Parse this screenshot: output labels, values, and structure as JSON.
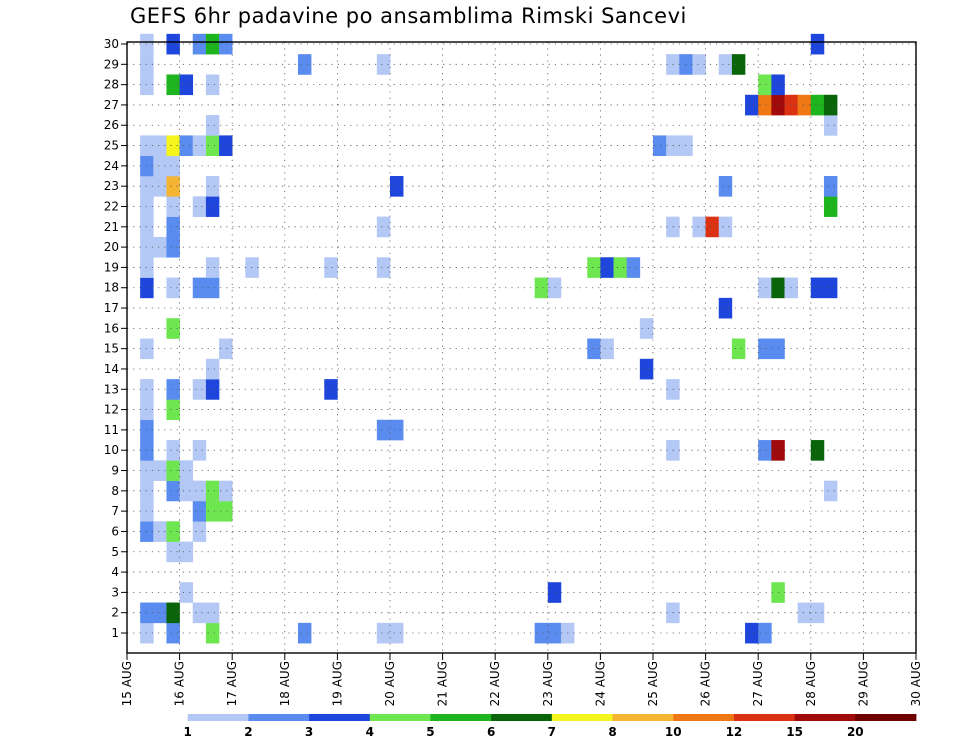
{
  "title": "GEFS 6hr padavine po ansamblima Rimski Sancevi",
  "chart_data": {
    "type": "heatmap",
    "title": "GEFS 6hr padavine po ansamblima Rimski Sancevi",
    "x_tick_labels": [
      "15 AUG",
      "16 AUG",
      "17 AUG",
      "18 AUG",
      "19 AUG",
      "20 AUG",
      "21 AUG",
      "22 AUG",
      "23 AUG",
      "24 AUG",
      "25 AUG",
      "26 AUG",
      "27 AUG",
      "28 AUG",
      "29 AUG",
      "30 AUG"
    ],
    "y_tick_labels": [
      "1",
      "2",
      "3",
      "4",
      "5",
      "6",
      "7",
      "8",
      "9",
      "10",
      "11",
      "12",
      "13",
      "14",
      "15",
      "16",
      "17",
      "18",
      "19",
      "20",
      "21",
      "22",
      "23",
      "24",
      "25",
      "26",
      "27",
      "28",
      "29",
      "30"
    ],
    "xlim_days": [
      0,
      15
    ],
    "ylim_members": [
      1,
      30
    ],
    "grid": "dotted",
    "legend": {
      "position": "bottom",
      "labels": [
        "1",
        "2",
        "3",
        "4",
        "5",
        "6",
        "7",
        "8",
        "10",
        "12",
        "15",
        "20"
      ],
      "colors": [
        "#ffffff",
        "#b4c8f5",
        "#5a8cf0",
        "#1e46dc",
        "#6ee650",
        "#1eb41e",
        "#0a640a",
        "#f5f51e",
        "#f5b432",
        "#f07814",
        "#dc3214",
        "#a00a0a",
        "#6e0000"
      ]
    },
    "cells": [
      {
        "t": 1,
        "m": 1,
        "c": 1
      },
      {
        "t": 1,
        "m": 2,
        "c": 2
      },
      {
        "t": 1,
        "m": 6,
        "c": 2
      },
      {
        "t": 1,
        "m": 7,
        "c": 1
      },
      {
        "t": 1,
        "m": 8,
        "c": 1
      },
      {
        "t": 1,
        "m": 9,
        "c": 1
      },
      {
        "t": 1,
        "m": 10,
        "c": 2
      },
      {
        "t": 1,
        "m": 11,
        "c": 2
      },
      {
        "t": 1,
        "m": 12,
        "c": 1
      },
      {
        "t": 1,
        "m": 13,
        "c": 1
      },
      {
        "t": 1,
        "m": 15,
        "c": 1
      },
      {
        "t": 1,
        "m": 18,
        "c": 3
      },
      {
        "t": 1,
        "m": 19,
        "c": 1
      },
      {
        "t": 1,
        "m": 20,
        "c": 1
      },
      {
        "t": 1,
        "m": 21,
        "c": 1
      },
      {
        "t": 1,
        "m": 22,
        "c": 1
      },
      {
        "t": 1,
        "m": 23,
        "c": 1
      },
      {
        "t": 1,
        "m": 24,
        "c": 2
      },
      {
        "t": 1,
        "m": 25,
        "c": 1
      },
      {
        "t": 1,
        "m": 28,
        "c": 1
      },
      {
        "t": 1,
        "m": 29,
        "c": 1
      },
      {
        "t": 1,
        "m": 30,
        "c": 1
      },
      {
        "t": 2,
        "m": 2,
        "c": 2
      },
      {
        "t": 2,
        "m": 6,
        "c": 1
      },
      {
        "t": 2,
        "m": 9,
        "c": 1
      },
      {
        "t": 2,
        "m": 20,
        "c": 1
      },
      {
        "t": 2,
        "m": 23,
        "c": 1
      },
      {
        "t": 2,
        "m": 24,
        "c": 1
      },
      {
        "t": 2,
        "m": 25,
        "c": 1
      },
      {
        "t": 3,
        "m": 1,
        "c": 2
      },
      {
        "t": 3,
        "m": 2,
        "c": 6
      },
      {
        "t": 3,
        "m": 5,
        "c": 1
      },
      {
        "t": 3,
        "m": 6,
        "c": 4
      },
      {
        "t": 3,
        "m": 8,
        "c": 2
      },
      {
        "t": 3,
        "m": 9,
        "c": 4
      },
      {
        "t": 3,
        "m": 10,
        "c": 1
      },
      {
        "t": 3,
        "m": 12,
        "c": 4
      },
      {
        "t": 3,
        "m": 13,
        "c": 2
      },
      {
        "t": 3,
        "m": 16,
        "c": 4
      },
      {
        "t": 3,
        "m": 18,
        "c": 1
      },
      {
        "t": 3,
        "m": 20,
        "c": 2
      },
      {
        "t": 3,
        "m": 21,
        "c": 2
      },
      {
        "t": 3,
        "m": 22,
        "c": 1
      },
      {
        "t": 3,
        "m": 23,
        "c": 8
      },
      {
        "t": 3,
        "m": 24,
        "c": 1
      },
      {
        "t": 3,
        "m": 25,
        "c": 7
      },
      {
        "t": 3,
        "m": 28,
        "c": 5
      },
      {
        "t": 3,
        "m": 30,
        "c": 3
      },
      {
        "t": 4,
        "m": 3,
        "c": 1
      },
      {
        "t": 4,
        "m": 5,
        "c": 1
      },
      {
        "t": 4,
        "m": 8,
        "c": 1
      },
      {
        "t": 4,
        "m": 9,
        "c": 1
      },
      {
        "t": 4,
        "m": 25,
        "c": 2
      },
      {
        "t": 4,
        "m": 28,
        "c": 3
      },
      {
        "t": 5,
        "m": 2,
        "c": 1
      },
      {
        "t": 5,
        "m": 6,
        "c": 1
      },
      {
        "t": 5,
        "m": 7,
        "c": 2
      },
      {
        "t": 5,
        "m": 8,
        "c": 1
      },
      {
        "t": 5,
        "m": 10,
        "c": 1
      },
      {
        "t": 5,
        "m": 13,
        "c": 1
      },
      {
        "t": 5,
        "m": 18,
        "c": 2
      },
      {
        "t": 5,
        "m": 22,
        "c": 1
      },
      {
        "t": 5,
        "m": 25,
        "c": 1
      },
      {
        "t": 5,
        "m": 30,
        "c": 2
      },
      {
        "t": 6,
        "m": 1,
        "c": 4
      },
      {
        "t": 6,
        "m": 2,
        "c": 1
      },
      {
        "t": 6,
        "m": 7,
        "c": 4
      },
      {
        "t": 6,
        "m": 8,
        "c": 4
      },
      {
        "t": 6,
        "m": 13,
        "c": 3
      },
      {
        "t": 6,
        "m": 14,
        "c": 1
      },
      {
        "t": 6,
        "m": 18,
        "c": 2
      },
      {
        "t": 6,
        "m": 19,
        "c": 1
      },
      {
        "t": 6,
        "m": 22,
        "c": 3
      },
      {
        "t": 6,
        "m": 23,
        "c": 1
      },
      {
        "t": 6,
        "m": 25,
        "c": 4
      },
      {
        "t": 6,
        "m": 26,
        "c": 1
      },
      {
        "t": 6,
        "m": 28,
        "c": 1
      },
      {
        "t": 6,
        "m": 30,
        "c": 5
      },
      {
        "t": 7,
        "m": 7,
        "c": 4
      },
      {
        "t": 7,
        "m": 8,
        "c": 1
      },
      {
        "t": 7,
        "m": 15,
        "c": 1
      },
      {
        "t": 7,
        "m": 25,
        "c": 3
      },
      {
        "t": 7,
        "m": 30,
        "c": 2
      },
      {
        "t": 9,
        "m": 19,
        "c": 1
      },
      {
        "t": 13,
        "m": 1,
        "c": 2
      },
      {
        "t": 13,
        "m": 29,
        "c": 2
      },
      {
        "t": 15,
        "m": 13,
        "c": 3
      },
      {
        "t": 15,
        "m": 19,
        "c": 1
      },
      {
        "t": 19,
        "m": 1,
        "c": 1
      },
      {
        "t": 19,
        "m": 11,
        "c": 2
      },
      {
        "t": 19,
        "m": 19,
        "c": 1
      },
      {
        "t": 19,
        "m": 21,
        "c": 1
      },
      {
        "t": 19,
        "m": 29,
        "c": 1
      },
      {
        "t": 20,
        "m": 1,
        "c": 1
      },
      {
        "t": 20,
        "m": 11,
        "c": 2
      },
      {
        "t": 20,
        "m": 23,
        "c": 3
      },
      {
        "t": 31,
        "m": 1,
        "c": 2
      },
      {
        "t": 31,
        "m": 18,
        "c": 4
      },
      {
        "t": 32,
        "m": 1,
        "c": 2
      },
      {
        "t": 32,
        "m": 3,
        "c": 3
      },
      {
        "t": 32,
        "m": 18,
        "c": 1
      },
      {
        "t": 33,
        "m": 1,
        "c": 1
      },
      {
        "t": 35,
        "m": 15,
        "c": 2
      },
      {
        "t": 35,
        "m": 19,
        "c": 4
      },
      {
        "t": 36,
        "m": 15,
        "c": 1
      },
      {
        "t": 36,
        "m": 19,
        "c": 3
      },
      {
        "t": 37,
        "m": 19,
        "c": 4
      },
      {
        "t": 38,
        "m": 19,
        "c": 2
      },
      {
        "t": 39,
        "m": 14,
        "c": 3
      },
      {
        "t": 39,
        "m": 16,
        "c": 1
      },
      {
        "t": 40,
        "m": 25,
        "c": 2
      },
      {
        "t": 41,
        "m": 2,
        "c": 1
      },
      {
        "t": 41,
        "m": 10,
        "c": 1
      },
      {
        "t": 41,
        "m": 13,
        "c": 1
      },
      {
        "t": 41,
        "m": 21,
        "c": 1
      },
      {
        "t": 41,
        "m": 25,
        "c": 1
      },
      {
        "t": 41,
        "m": 29,
        "c": 1
      },
      {
        "t": 42,
        "m": 25,
        "c": 1
      },
      {
        "t": 42,
        "m": 29,
        "c": 2
      },
      {
        "t": 43,
        "m": 21,
        "c": 1
      },
      {
        "t": 43,
        "m": 29,
        "c": 1
      },
      {
        "t": 44,
        "m": 21,
        "c": 10
      },
      {
        "t": 45,
        "m": 17,
        "c": 3
      },
      {
        "t": 45,
        "m": 21,
        "c": 1
      },
      {
        "t": 45,
        "m": 23,
        "c": 2
      },
      {
        "t": 45,
        "m": 29,
        "c": 1
      },
      {
        "t": 46,
        "m": 15,
        "c": 4
      },
      {
        "t": 46,
        "m": 29,
        "c": 6
      },
      {
        "t": 47,
        "m": 1,
        "c": 3
      },
      {
        "t": 47,
        "m": 27,
        "c": 3
      },
      {
        "t": 48,
        "m": 1,
        "c": 2
      },
      {
        "t": 48,
        "m": 10,
        "c": 2
      },
      {
        "t": 48,
        "m": 15,
        "c": 2
      },
      {
        "t": 48,
        "m": 18,
        "c": 1
      },
      {
        "t": 48,
        "m": 27,
        "c": 9
      },
      {
        "t": 48,
        "m": 28,
        "c": 4
      },
      {
        "t": 49,
        "m": 3,
        "c": 4
      },
      {
        "t": 49,
        "m": 10,
        "c": 11
      },
      {
        "t": 49,
        "m": 15,
        "c": 2
      },
      {
        "t": 49,
        "m": 18,
        "c": 6
      },
      {
        "t": 49,
        "m": 27,
        "c": 11
      },
      {
        "t": 49,
        "m": 28,
        "c": 3
      },
      {
        "t": 50,
        "m": 18,
        "c": 1
      },
      {
        "t": 50,
        "m": 27,
        "c": 10
      },
      {
        "t": 51,
        "m": 2,
        "c": 1
      },
      {
        "t": 51,
        "m": 27,
        "c": 9
      },
      {
        "t": 52,
        "m": 2,
        "c": 1
      },
      {
        "t": 52,
        "m": 10,
        "c": 6
      },
      {
        "t": 52,
        "m": 18,
        "c": 3
      },
      {
        "t": 52,
        "m": 27,
        "c": 5
      },
      {
        "t": 52,
        "m": 30,
        "c": 3
      },
      {
        "t": 53,
        "m": 8,
        "c": 1
      },
      {
        "t": 53,
        "m": 18,
        "c": 3
      },
      {
        "t": 53,
        "m": 22,
        "c": 5
      },
      {
        "t": 53,
        "m": 23,
        "c": 2
      },
      {
        "t": 53,
        "m": 26,
        "c": 1
      },
      {
        "t": 53,
        "m": 27,
        "c": 6
      }
    ]
  }
}
